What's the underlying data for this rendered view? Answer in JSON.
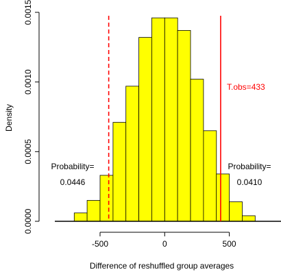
{
  "chart_data": {
    "type": "bar",
    "title": "",
    "xlabel": "Difference of reshuffled group averages",
    "ylabel": "Density",
    "xlim": [
      -850,
      900
    ],
    "ylim": [
      0,
      0.0015
    ],
    "x_ticks": [
      -500,
      0,
      500
    ],
    "x_tick_labels": [
      "-500",
      "0",
      "500"
    ],
    "y_ticks": [
      0,
      0.0005,
      0.001,
      0.0015
    ],
    "y_tick_labels": [
      "0.0000",
      "0.0005",
      "0.0010",
      "0.0015"
    ],
    "bin_width": 100,
    "bins": [
      {
        "x0": -700,
        "x1": -600,
        "density": 6e-05
      },
      {
        "x0": -600,
        "x1": -500,
        "density": 0.00015
      },
      {
        "x0": -500,
        "x1": -400,
        "density": 0.00033
      },
      {
        "x0": -400,
        "x1": -300,
        "density": 0.00071
      },
      {
        "x0": -300,
        "x1": -200,
        "density": 0.00097
      },
      {
        "x0": -200,
        "x1": -100,
        "density": 0.00132
      },
      {
        "x0": -100,
        "x1": 0,
        "density": 0.00146
      },
      {
        "x0": 0,
        "x1": 100,
        "density": 0.00146
      },
      {
        "x0": 100,
        "x1": 200,
        "density": 0.00137
      },
      {
        "x0": 200,
        "x1": 300,
        "density": 0.00102
      },
      {
        "x0": 300,
        "x1": 400,
        "density": 0.00065
      },
      {
        "x0": 400,
        "x1": 500,
        "density": 0.00034
      },
      {
        "x0": 500,
        "x1": 600,
        "density": 0.00014
      },
      {
        "x0": 600,
        "x1": 700,
        "density": 4e-05
      }
    ],
    "bar_color": "#ffff00",
    "vlines": [
      {
        "x": -433,
        "style": "dashed",
        "color": "#ff0000"
      },
      {
        "x": 433,
        "style": "solid",
        "color": "#ff0000"
      }
    ],
    "annotations": {
      "t_obs": {
        "text": "T.obs=433",
        "color": "#ff0000"
      },
      "left_prob_label": "Probability=",
      "left_prob_value": "0.0446",
      "right_prob_label": "Probability=",
      "right_prob_value": "0.0410"
    }
  }
}
